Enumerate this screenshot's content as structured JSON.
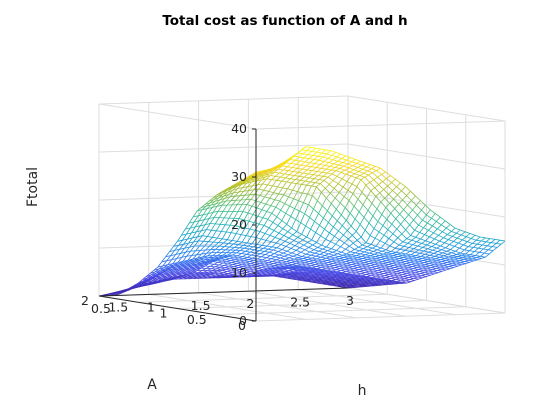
{
  "chart_data": {
    "type": "mesh",
    "title": "Total cost as function of A and h",
    "xlabel": "h",
    "ylabel": "A",
    "zlabel": "Ftotal",
    "xlim": [
      0.5,
      3
    ],
    "ylim": [
      0,
      2
    ],
    "zlim": [
      0,
      40
    ],
    "xticks": [
      "0.5",
      "1",
      "1.5",
      "2",
      "2.5",
      "3"
    ],
    "yticks": [
      "0",
      "0.5",
      "1",
      "1.5",
      "2"
    ],
    "zticks": [
      "0",
      "10",
      "20",
      "30",
      "40"
    ],
    "grid": true,
    "colormap": "parula",
    "colormap_stops": [
      "#3e26a8",
      "#4a4ae5",
      "#2b7ff2",
      "#1aa7c9",
      "#3ebf8f",
      "#a5bf3a",
      "#f5d621",
      "#f9fb0e"
    ],
    "h_values": [
      0.5,
      0.75,
      1.0,
      1.25,
      1.5,
      1.75,
      2.0,
      2.25,
      2.5,
      2.75,
      3.0
    ],
    "A_values": [
      0,
      0.25,
      0.5,
      0.75,
      1.0,
      1.25,
      1.5,
      1.75,
      2.0
    ],
    "Ftotal": [
      [
        31,
        32,
        36,
        35,
        33,
        31,
        27,
        22,
        18,
        16,
        15
      ],
      [
        28,
        30,
        32,
        31,
        30,
        28,
        22,
        16,
        14,
        12,
        11
      ],
      [
        25,
        27,
        28,
        27,
        26,
        20,
        14,
        12,
        11,
        10,
        9
      ],
      [
        21,
        22,
        22,
        20,
        16,
        13,
        11,
        10,
        9,
        8,
        7
      ],
      [
        14,
        15,
        14,
        13,
        12,
        10,
        9,
        8,
        7,
        6,
        5
      ],
      [
        8,
        9,
        10,
        10,
        9,
        8,
        7,
        6,
        5,
        4,
        3
      ],
      [
        4,
        6,
        7,
        8,
        7,
        6,
        6,
        5,
        4,
        3,
        2
      ],
      [
        1,
        3,
        4,
        5,
        5,
        4,
        4,
        4,
        3,
        2,
        1
      ],
      [
        0,
        1,
        2,
        3,
        3,
        3,
        3,
        3,
        2,
        1,
        0
      ]
    ]
  }
}
